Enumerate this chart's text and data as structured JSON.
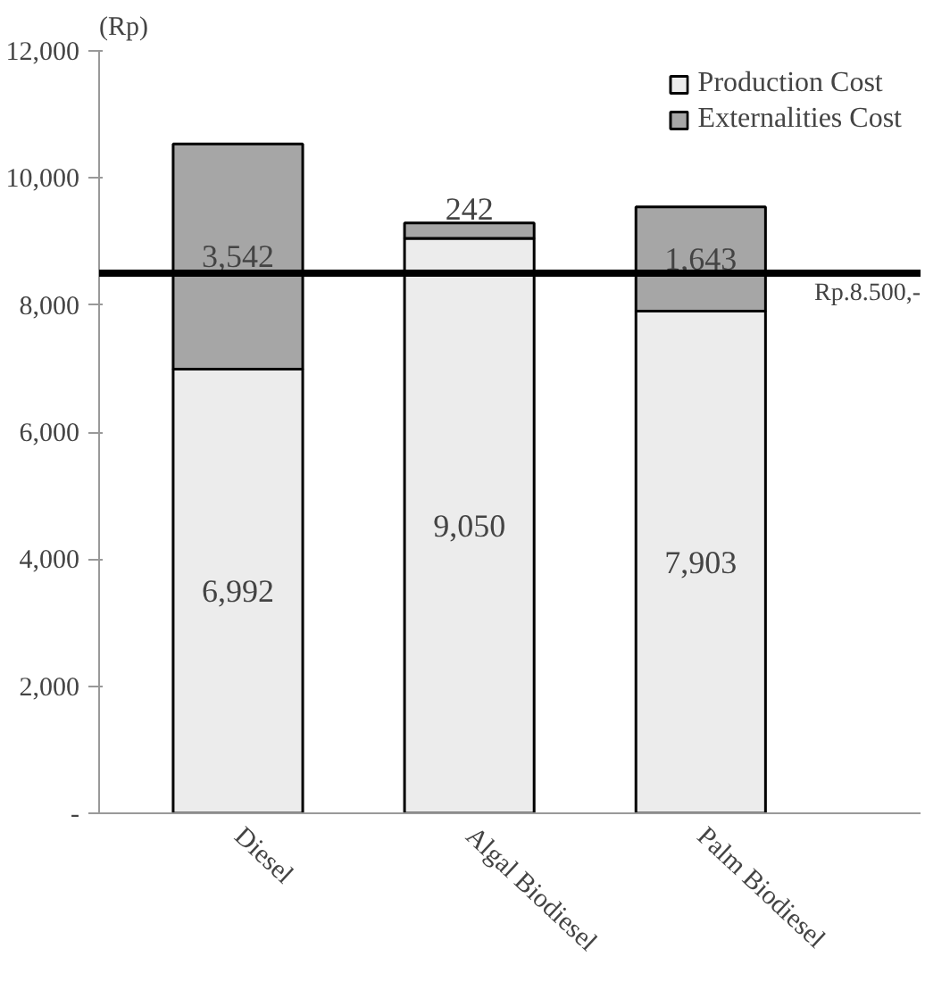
{
  "chart_data": {
    "type": "bar",
    "stacked": true,
    "ylabel": "(Rp)",
    "categories": [
      "Diesel",
      "Algal Biodiesel",
      "Palm Biodiesel"
    ],
    "series": [
      {
        "name": "Production Cost",
        "color": "#ececec",
        "values": [
          6992,
          9050,
          7903
        ],
        "value_labels": [
          "6,992",
          "9,050",
          "7,903"
        ]
      },
      {
        "name": "Externalities Cost",
        "color": "#a6a6a6",
        "values": [
          3542,
          242,
          1643
        ],
        "value_labels": [
          "3,542",
          "242",
          "1,643"
        ]
      }
    ],
    "ylim": [
      0,
      12000
    ],
    "yticks": [
      {
        "value": 0,
        "label": "-"
      },
      {
        "value": 2000,
        "label": "2,000"
      },
      {
        "value": 4000,
        "label": "4,000"
      },
      {
        "value": 6000,
        "label": "6,000"
      },
      {
        "value": 8000,
        "label": "8,000"
      },
      {
        "value": 10000,
        "label": "10,000"
      },
      {
        "value": 12000,
        "label": "12,000"
      }
    ],
    "ref_lines": [
      {
        "axis": "y",
        "value": 8500,
        "label": "Rp.8.500,-",
        "color": "#000000"
      }
    ],
    "grid": false,
    "legend": "top right"
  }
}
